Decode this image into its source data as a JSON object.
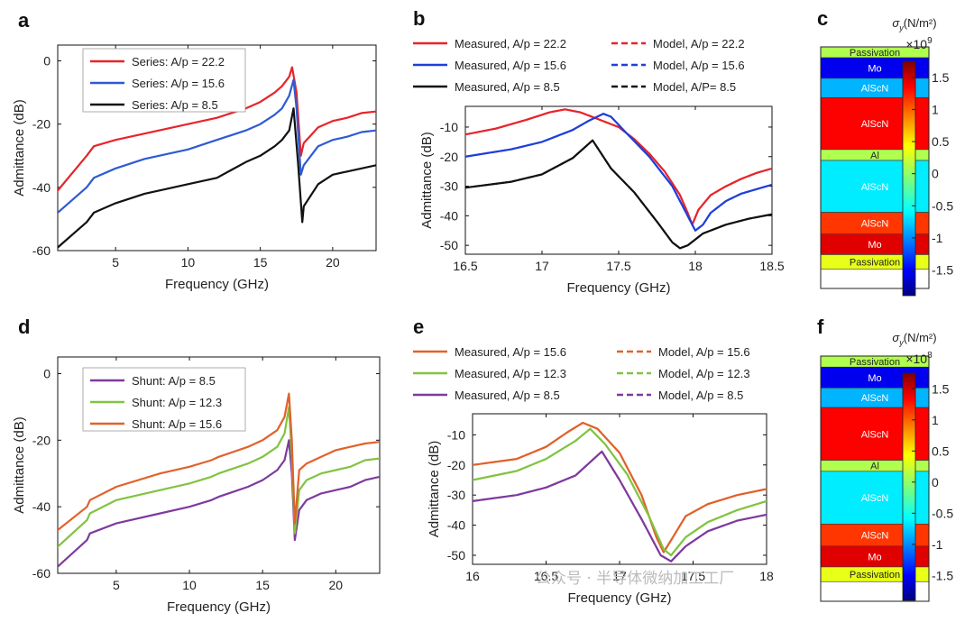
{
  "watermark": "公众号 · 半导体微纳加工工厂",
  "chart_data": [
    {
      "id": "a",
      "panel_label": "a",
      "type": "line",
      "xlabel": "Frequency (GHz)",
      "ylabel": "Admittance (dB)",
      "xlim": [
        1,
        23
      ],
      "ylim": [
        -60,
        5
      ],
      "xticks": [
        5,
        10,
        15,
        20
      ],
      "yticks": [
        0,
        -20,
        -40,
        -60
      ],
      "legend_position": "top-left",
      "series": [
        {
          "name": "Series: A/p = 22.2",
          "color": "#e8232a",
          "style": "solid",
          "x": [
            1,
            3,
            3.5,
            5,
            7,
            8,
            10,
            12,
            14,
            15,
            16,
            16.5,
            17,
            17.2,
            17.5,
            17.8,
            18,
            19,
            20,
            21,
            22,
            23
          ],
          "y": [
            -41,
            -30,
            -27,
            -25,
            -23,
            -22,
            -20,
            -18,
            -15,
            -13,
            -10,
            -8,
            -5,
            -2,
            -10,
            -30,
            -26,
            -21,
            -19,
            -18,
            -16.5,
            -16
          ]
        },
        {
          "name": "Series: A/p = 15.6",
          "color": "#2e5bd3",
          "style": "solid",
          "x": [
            1,
            3,
            3.5,
            5,
            7,
            8,
            10,
            12,
            14,
            15,
            16,
            16.5,
            17,
            17.3,
            17.5,
            17.8,
            18,
            19,
            20,
            21,
            22,
            23
          ],
          "y": [
            -48,
            -40,
            -37,
            -34,
            -31,
            -30,
            -28,
            -25,
            -22,
            -20,
            -17,
            -15,
            -11,
            -6,
            -15,
            -36,
            -33,
            -27,
            -25,
            -24,
            -22.5,
            -22
          ]
        },
        {
          "name": "Series: A/p = 8.5",
          "color": "#111111",
          "style": "solid",
          "x": [
            1,
            3,
            3.5,
            5,
            7,
            8,
            10,
            12,
            14,
            15,
            16,
            16.5,
            17,
            17.3,
            17.6,
            17.9,
            18,
            19,
            20,
            21,
            22,
            23
          ],
          "y": [
            -59,
            -51,
            -48,
            -45,
            -42,
            -41,
            -39,
            -37,
            -32,
            -30,
            -27,
            -25,
            -22,
            -15,
            -32,
            -51,
            -46,
            -39,
            -36,
            -35,
            -34,
            -33
          ]
        }
      ]
    },
    {
      "id": "b",
      "panel_label": "b",
      "type": "line",
      "xlabel": "Frequency (GHz)",
      "ylabel": "Admittance (dB)",
      "xlim": [
        16.5,
        18.5
      ],
      "ylim": [
        -53,
        -3
      ],
      "xticks": [
        16.5,
        17,
        17.5,
        18,
        18.5
      ],
      "yticks": [
        -10,
        -20,
        -30,
        -40,
        -50
      ],
      "legend_position": "top (above axes)",
      "series": [
        {
          "name": "Measured, A/p = 22.2",
          "color": "#e8232a",
          "style": "solid",
          "x": [
            16.5,
            16.7,
            16.9,
            17.05,
            17.15,
            17.25,
            17.35,
            17.5,
            17.6,
            17.7,
            17.8,
            17.9,
            17.95,
            17.98,
            18.02,
            18.1,
            18.2,
            18.3,
            18.4,
            18.5
          ],
          "y": [
            -12.5,
            -10.5,
            -7.5,
            -5,
            -4,
            -5,
            -7,
            -10,
            -14,
            -19,
            -25,
            -33,
            -39,
            -43,
            -38,
            -33,
            -30,
            -27.5,
            -25.5,
            -24
          ]
        },
        {
          "name": "Model,  A/p = 22.2",
          "color": "#e8232a",
          "style": "dashed",
          "x": [
            16.5,
            16.7,
            16.9,
            17.05,
            17.15,
            17.25,
            17.35,
            17.5,
            17.6,
            17.7,
            17.8,
            17.9,
            17.95,
            17.98,
            18.02,
            18.1,
            18.2,
            18.3,
            18.4,
            18.5
          ],
          "y": [
            -12.5,
            -10.5,
            -7.5,
            -5,
            -4,
            -5,
            -7,
            -10,
            -14,
            -19,
            -25,
            -33,
            -39,
            -43,
            -38,
            -33,
            -30,
            -27.5,
            -25.5,
            -24
          ]
        },
        {
          "name": "Measured, A/p = 15.6",
          "color": "#1f3fd8",
          "style": "solid",
          "x": [
            16.5,
            16.8,
            17.0,
            17.2,
            17.3,
            17.4,
            17.45,
            17.55,
            17.7,
            17.85,
            17.95,
            18.0,
            18.05,
            18.1,
            18.2,
            18.3,
            18.4,
            18.5
          ],
          "y": [
            -20,
            -17.5,
            -15,
            -11,
            -8,
            -5.5,
            -6.5,
            -12,
            -20,
            -30,
            -40,
            -45,
            -43,
            -39,
            -35,
            -32.5,
            -31,
            -29.5
          ]
        },
        {
          "name": "Model,  A/p = 15.6",
          "color": "#1f3fd8",
          "style": "dashed",
          "x": [
            16.5,
            16.8,
            17.0,
            17.2,
            17.3,
            17.4,
            17.45,
            17.55,
            17.7,
            17.85,
            17.95,
            18.0,
            18.05,
            18.1,
            18.2,
            18.3,
            18.4,
            18.5
          ],
          "y": [
            -20,
            -17.5,
            -15,
            -11,
            -8,
            -5.5,
            -6.5,
            -12,
            -20,
            -30,
            -40,
            -45,
            -43,
            -39,
            -35,
            -32.5,
            -31,
            -29.5
          ]
        },
        {
          "name": "Measured, A/p = 8.5",
          "color": "#111111",
          "style": "solid",
          "x": [
            16.5,
            16.8,
            17.0,
            17.2,
            17.33,
            17.45,
            17.6,
            17.75,
            17.85,
            17.9,
            17.95,
            18.05,
            18.2,
            18.35,
            18.5
          ],
          "y": [
            -30.5,
            -28.5,
            -26,
            -20.5,
            -14.5,
            -24,
            -32,
            -42,
            -49,
            -51,
            -50,
            -46,
            -43,
            -41,
            -39.5
          ]
        },
        {
          "name": "Model, A/P= 8.5",
          "color": "#111111",
          "style": "dashed",
          "x": [
            16.5,
            16.8,
            17.0,
            17.2,
            17.33,
            17.45,
            17.6,
            17.75,
            17.85,
            17.9,
            17.95,
            18.05,
            18.2,
            18.35,
            18.5
          ],
          "y": [
            -30.5,
            -28.5,
            -26,
            -20.5,
            -14.5,
            -24,
            -32,
            -42,
            -49,
            -51,
            -50,
            -46,
            -43,
            -41,
            -39.5
          ]
        }
      ]
    },
    {
      "id": "d",
      "panel_label": "d",
      "type": "line",
      "xlabel": "Frequency (GHz)",
      "ylabel": "Admittance (dB)",
      "xlim": [
        1,
        23
      ],
      "ylim": [
        -60,
        5
      ],
      "xticks": [
        5,
        10,
        15,
        20
      ],
      "yticks": [
        0,
        -20,
        -40,
        -60
      ],
      "legend_position": "top-left",
      "series": [
        {
          "name": "Shunt: A/p = 8.5",
          "color": "#7e3a9e",
          "style": "solid",
          "x": [
            1,
            3,
            3.2,
            5,
            8,
            10,
            11.5,
            12,
            14,
            15,
            16,
            16.5,
            16.8,
            17.0,
            17.2,
            17.5,
            18,
            19,
            20,
            21,
            22,
            23
          ],
          "y": [
            -58,
            -50,
            -48,
            -45,
            -42,
            -40,
            -38,
            -37,
            -34,
            -32,
            -29,
            -26,
            -20,
            -30,
            -50,
            -41,
            -38,
            -36,
            -35,
            -34,
            -32,
            -31
          ]
        },
        {
          "name": "Shunt: A/p = 12.3",
          "color": "#82c341",
          "style": "solid",
          "x": [
            1,
            3,
            3.2,
            5,
            8,
            10,
            11.5,
            12,
            14,
            15,
            16,
            16.5,
            16.8,
            17.0,
            17.2,
            17.5,
            18,
            19,
            20,
            21,
            22,
            23
          ],
          "y": [
            -52,
            -44,
            -42,
            -38,
            -35,
            -33,
            -31,
            -30,
            -27,
            -25,
            -22,
            -18,
            -10,
            -25,
            -48,
            -35,
            -32,
            -30,
            -29,
            -28,
            -26,
            -25.5
          ]
        },
        {
          "name": "Shunt: A/p = 15.6",
          "color": "#e0622a",
          "style": "solid",
          "x": [
            1,
            3,
            3.2,
            5,
            8,
            10,
            11.5,
            12,
            14,
            15,
            16,
            16.5,
            16.8,
            17.0,
            17.2,
            17.5,
            18,
            19,
            20,
            21,
            22,
            23
          ],
          "y": [
            -47,
            -40,
            -38,
            -34,
            -30,
            -28,
            -26,
            -25,
            -22,
            -20,
            -17,
            -13,
            -6,
            -20,
            -45,
            -29,
            -27,
            -25,
            -23,
            -22,
            -21,
            -20.5
          ]
        }
      ]
    },
    {
      "id": "e",
      "panel_label": "e",
      "type": "line",
      "xlabel": "Frequency (GHz)",
      "ylabel": "Admittance (dB)",
      "xlim": [
        16,
        18
      ],
      "ylim": [
        -53,
        -3
      ],
      "xticks": [
        16,
        16.5,
        17,
        17.5,
        18
      ],
      "yticks": [
        -10,
        -20,
        -30,
        -40,
        -50
      ],
      "legend_position": "top (above axes)",
      "series": [
        {
          "name": "Measured, A/p = 15.6",
          "color": "#e0622a",
          "style": "solid",
          "x": [
            16,
            16.3,
            16.5,
            16.65,
            16.75,
            16.85,
            17.0,
            17.15,
            17.25,
            17.3,
            17.35,
            17.45,
            17.6,
            17.8,
            18
          ],
          "y": [
            -20,
            -18,
            -14,
            -9,
            -6,
            -8,
            -16,
            -30,
            -44,
            -49,
            -45,
            -37,
            -33,
            -30,
            -28
          ]
        },
        {
          "name": "Model, A/p = 15.6",
          "color": "#e0622a",
          "style": "dashed",
          "x": [
            16,
            16.3,
            16.5,
            16.65,
            16.75,
            16.85,
            17.0,
            17.15,
            17.25,
            17.3,
            17.35,
            17.45,
            17.6,
            17.8,
            18
          ],
          "y": [
            -20,
            -18,
            -14,
            -9,
            -6,
            -8,
            -16,
            -30,
            -44,
            -49,
            -45,
            -37,
            -33,
            -30,
            -28
          ]
        },
        {
          "name": "Measured, A/p = 12.3",
          "color": "#82c341",
          "style": "solid",
          "x": [
            16,
            16.3,
            16.5,
            16.7,
            16.8,
            16.9,
            17.05,
            17.2,
            17.3,
            17.35,
            17.45,
            17.6,
            17.8,
            18
          ],
          "y": [
            -25,
            -22,
            -18,
            -12,
            -8,
            -13,
            -23,
            -37,
            -48,
            -50,
            -44,
            -39,
            -35,
            -32
          ]
        },
        {
          "name": "Model, A/p = 12.3",
          "color": "#82c341",
          "style": "dashed",
          "x": [
            16,
            16.3,
            16.5,
            16.7,
            16.8,
            16.9,
            17.05,
            17.2,
            17.3,
            17.35,
            17.45,
            17.6,
            17.8,
            18
          ],
          "y": [
            -25,
            -22,
            -18,
            -12,
            -8,
            -13,
            -23,
            -37,
            -48,
            -50,
            -44,
            -39,
            -35,
            -32
          ]
        },
        {
          "name": "Measured, A/p = 8.5",
          "color": "#7e3a9e",
          "style": "solid",
          "x": [
            16,
            16.3,
            16.5,
            16.7,
            16.88,
            17.0,
            17.15,
            17.28,
            17.35,
            17.45,
            17.6,
            17.8,
            18
          ],
          "y": [
            -32,
            -30,
            -27.5,
            -23.5,
            -15.5,
            -25,
            -38,
            -50,
            -52,
            -47,
            -42,
            -38.5,
            -36.5
          ]
        },
        {
          "name": "Model, A/p = 8.5",
          "color": "#7e3a9e",
          "style": "dashed",
          "x": [
            16,
            16.3,
            16.5,
            16.7,
            16.88,
            17.0,
            17.15,
            17.28,
            17.35,
            17.45,
            17.6,
            17.8,
            18
          ],
          "y": [
            -32,
            -30,
            -27.5,
            -23.5,
            -15.5,
            -25,
            -38,
            -50,
            -52,
            -47,
            -42,
            -38.5,
            -36.5
          ]
        }
      ]
    },
    {
      "id": "c",
      "panel_label": "c",
      "type": "heatmap",
      "colorbar_title": "σ",
      "colorbar_sub": "y",
      "colorbar_unit": "(N/m²)",
      "colorbar_exponent_base": "×10",
      "colorbar_exponent_power": "9",
      "colorbar_range": [
        -1.9,
        1.75
      ],
      "colorbar_ticks": [
        1.5,
        1,
        0.5,
        0,
        -0.5,
        -1,
        -1.5
      ],
      "layers": [
        {
          "name": "Passivation",
          "stress": 0.1
        },
        {
          "name": "Mo",
          "stress": -1.5
        },
        {
          "name": "AlScN",
          "stress": -0.8
        },
        {
          "name": "AlScN",
          "stress": 1.3
        },
        {
          "name": "Al",
          "stress": 0.1
        },
        {
          "name": "AlScN",
          "stress": -0.6
        },
        {
          "name": "AlScN",
          "stress": 1.1
        },
        {
          "name": "Mo",
          "stress": 1.4
        },
        {
          "name": "Passivation",
          "stress": 0.3
        }
      ]
    },
    {
      "id": "f",
      "panel_label": "f",
      "type": "heatmap",
      "colorbar_title": "σ",
      "colorbar_sub": "y",
      "colorbar_unit": "(N/m²)",
      "colorbar_exponent_base": "×10",
      "colorbar_exponent_power": "8",
      "colorbar_range": [
        -1.9,
        1.75
      ],
      "colorbar_ticks": [
        1.5,
        1,
        0.5,
        0,
        -0.5,
        -1,
        -1.5
      ],
      "layers": [
        {
          "name": "Passivation",
          "stress": 0.1
        },
        {
          "name": "Mo",
          "stress": -1.5
        },
        {
          "name": "AlScN",
          "stress": -0.8
        },
        {
          "name": "AlScN",
          "stress": 1.3
        },
        {
          "name": "Al",
          "stress": 0.1
        },
        {
          "name": "AlScN",
          "stress": -0.6
        },
        {
          "name": "AlScN",
          "stress": 1.1
        },
        {
          "name": "Mo",
          "stress": 1.4
        },
        {
          "name": "Passivation",
          "stress": 0.3
        }
      ]
    }
  ]
}
